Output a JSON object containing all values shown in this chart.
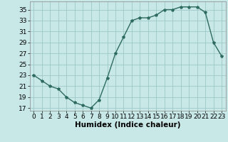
{
  "x": [
    0,
    1,
    2,
    3,
    4,
    5,
    6,
    7,
    8,
    9,
    10,
    11,
    12,
    13,
    14,
    15,
    16,
    17,
    18,
    19,
    20,
    21,
    22,
    23
  ],
  "y": [
    23,
    22,
    21,
    20.5,
    19,
    18,
    17.5,
    17,
    18.5,
    22.5,
    27,
    30,
    33,
    33.5,
    33.5,
    34,
    35,
    35,
    35.5,
    35.5,
    35.5,
    34.5,
    29,
    26.5
  ],
  "line_color": "#2d6b5e",
  "marker": "*",
  "marker_size": 3,
  "bg_color": "#c8e8e8",
  "grid_color": "#a0c8c8",
  "xlabel": "Humidex (Indice chaleur)",
  "xlim": [
    -0.5,
    23.5
  ],
  "ylim": [
    16.5,
    36.5
  ],
  "yticks": [
    17,
    19,
    21,
    23,
    25,
    27,
    29,
    31,
    33,
    35
  ],
  "xticks": [
    0,
    1,
    2,
    3,
    4,
    5,
    6,
    7,
    8,
    9,
    10,
    11,
    12,
    13,
    14,
    15,
    16,
    17,
    18,
    19,
    20,
    21,
    22,
    23
  ],
  "tick_fontsize": 6.5,
  "xlabel_fontsize": 7.5,
  "line_width": 1.0
}
